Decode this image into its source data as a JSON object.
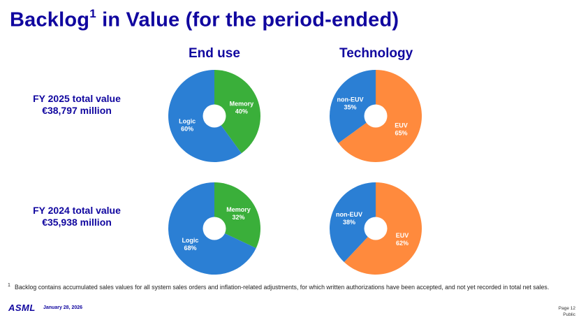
{
  "title": {
    "main": "Backlog",
    "sup": "1",
    "rest": " in Value (for the period-ended)"
  },
  "columns": {
    "end_use": "End use",
    "technology": "Technology"
  },
  "rows": [
    {
      "line1": "FY 2025 total value",
      "line2": "€38,797 million"
    },
    {
      "line1": "FY 2024 total value",
      "line2": "€35,938 million"
    }
  ],
  "colors": {
    "memory": "#3aaf3a",
    "logic": "#2b7fd4",
    "non_euv": "#2b7fd4",
    "euv": "#ff8a3d",
    "brand": "#10069f"
  },
  "chart_data": [
    {
      "type": "pie",
      "title": "End use",
      "row": "FY 2025",
      "slices": [
        {
          "label": "Memory",
          "value": 40,
          "text": "40%"
        },
        {
          "label": "Logic",
          "value": 60,
          "text": "60%"
        }
      ]
    },
    {
      "type": "pie",
      "title": "Technology",
      "row": "FY 2025",
      "slices": [
        {
          "label": "EUV",
          "value": 65,
          "text": "65%"
        },
        {
          "label": "non-EUV",
          "value": 35,
          "text": "35%"
        }
      ]
    },
    {
      "type": "pie",
      "title": "End use",
      "row": "FY 2024",
      "slices": [
        {
          "label": "Memory",
          "value": 32,
          "text": "32%"
        },
        {
          "label": "Logic",
          "value": 68,
          "text": "68%"
        }
      ]
    },
    {
      "type": "pie",
      "title": "Technology",
      "row": "FY 2024",
      "slices": [
        {
          "label": "EUV",
          "value": 62,
          "text": "62%"
        },
        {
          "label": "non-EUV",
          "value": 38,
          "text": "38%"
        }
      ]
    }
  ],
  "footnote": {
    "mark": "1",
    "text": "Backlog contains accumulated sales values for all system sales orders and inflation-related adjustments, for which written authorizations have been accepted, and not yet recorded in total net sales."
  },
  "footer": {
    "logo": "ASML",
    "date": "January 28, 2026",
    "page": "Page 12",
    "classification": "Public"
  }
}
